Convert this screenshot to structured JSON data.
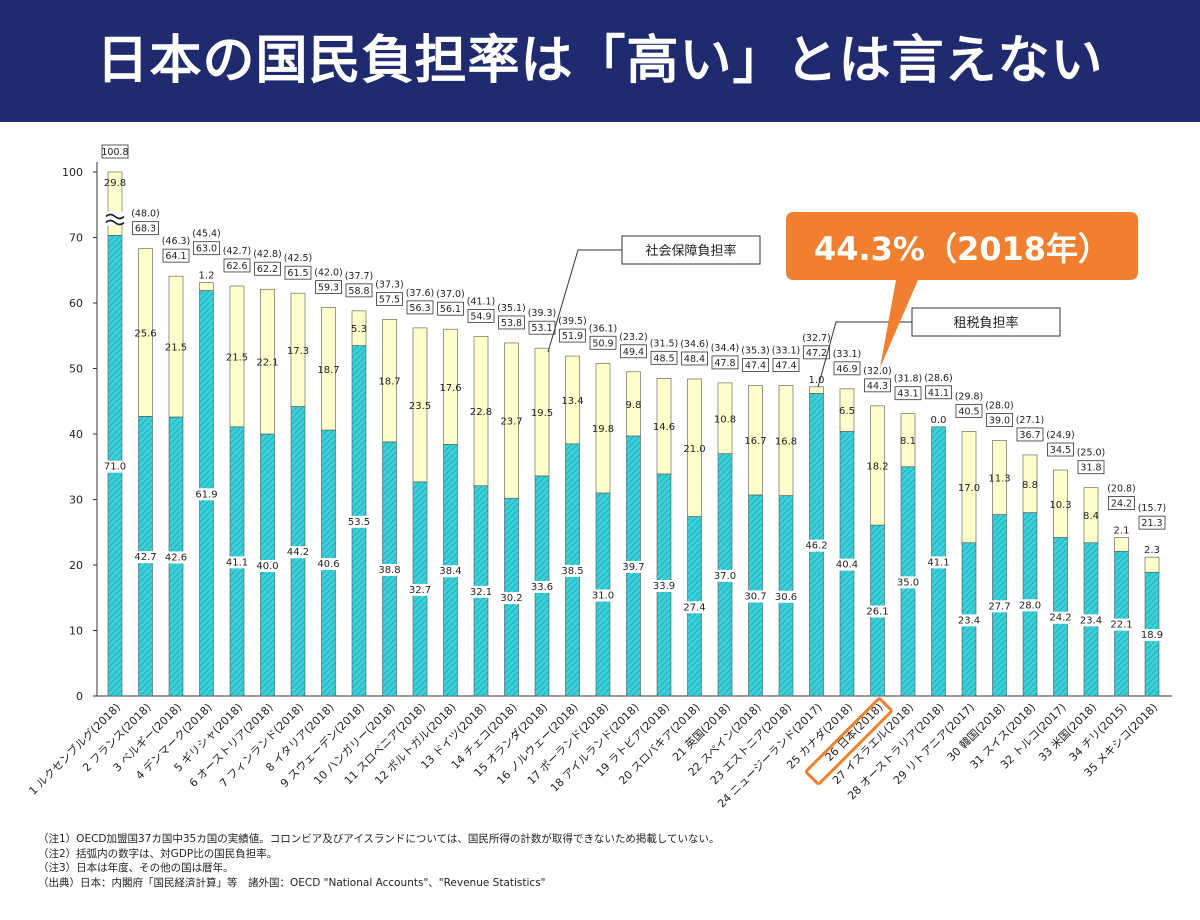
{
  "header": {
    "title": "日本の国民負担率は「高い」とは言えない"
  },
  "annotations": {
    "social_security_label": "社会保障負担率",
    "tax_label": "租税負担率",
    "callout": "44.3%（2018年）"
  },
  "notes": [
    "（注1）OECD加盟国37カ国中35カ国の実績値。コロンビア及びアイスランドについては、国民所得の計数が取得できないため掲載していない。",
    "（注2）括弧内の数字は、対GDP比の国民負担率。",
    "（注3）日本は年度、その他の国は暦年。",
    "（出典）日本：内閣府「国民経済計算」等　諸外国：OECD \"National Accounts\"、\"Revenue Statistics\""
  ],
  "colors": {
    "header_bg": "#202a6e",
    "tax": "#3dd0d8",
    "social_security": "#ffffcc",
    "callout": "#f08030",
    "japan_highlight": "#f08030"
  },
  "chart_data": {
    "type": "bar",
    "stacked": true,
    "ylim": [
      0,
      100
    ],
    "yticks": [
      0,
      10,
      20,
      30,
      40,
      50,
      60,
      70,
      100
    ],
    "axis_break": "between 70 and 100",
    "categories": [
      "1 ルクセンブルグ(2018)",
      "2 フランス(2018)",
      "3 ベルギー(2018)",
      "4 デンマーク(2018)",
      "5 ギリシャ(2018)",
      "6 オーストリア(2018)",
      "7 フィンランド(2018)",
      "8 イタリア(2018)",
      "9 スウェーデン(2018)",
      "10 ハンガリー(2018)",
      "11 スロベニア(2018)",
      "12 ポルトガル(2018)",
      "13 ドイツ(2018)",
      "14 チェコ(2018)",
      "15 オランダ(2018)",
      "16 ノルウェー(2018)",
      "17 ポーランド(2018)",
      "18 アイルランド(2018)",
      "19 ラトビア(2018)",
      "20 スロバキア(2018)",
      "21 英国(2018)",
      "22 スペイン(2018)",
      "23 エストニア(2018)",
      "24 ニュージーランド(2017)",
      "25 カナダ(2018)",
      "26 日本(2018)",
      "27 イスラエル(2018)",
      "28 オーストラリア(2018)",
      "29 リトアニア(2017)",
      "30 韓国(2018)",
      "31 スイス(2018)",
      "32 トルコ(2017)",
      "33 米国(2018)",
      "34 チリ(2015)",
      "35 メキシコ(2018)"
    ],
    "series": [
      {
        "name": "租税負担率",
        "values": [
          71.0,
          42.7,
          42.6,
          61.9,
          41.1,
          40.0,
          44.2,
          40.6,
          53.5,
          38.8,
          32.7,
          38.4,
          32.1,
          30.2,
          33.6,
          38.5,
          31.0,
          39.7,
          33.9,
          27.4,
          37.0,
          30.7,
          30.6,
          46.2,
          40.4,
          26.1,
          35.0,
          41.1,
          23.4,
          27.7,
          28.0,
          24.2,
          23.4,
          22.1,
          18.9
        ]
      },
      {
        "name": "社会保障負担率",
        "values": [
          29.8,
          25.6,
          21.5,
          1.2,
          21.5,
          22.1,
          17.3,
          18.7,
          5.3,
          18.7,
          23.5,
          17.6,
          22.8,
          23.7,
          19.5,
          13.4,
          19.8,
          9.8,
          14.6,
          21.0,
          10.8,
          16.7,
          16.8,
          1.0,
          6.5,
          18.2,
          8.1,
          0.0,
          17.0,
          11.3,
          8.8,
          10.3,
          8.4,
          2.1,
          2.3
        ]
      }
    ],
    "totals": [
      100.8,
      68.3,
      64.1,
      63.0,
      62.6,
      62.2,
      61.5,
      59.3,
      58.8,
      57.5,
      56.3,
      56.1,
      54.9,
      53.8,
      53.1,
      51.9,
      50.9,
      49.4,
      48.5,
      48.4,
      47.8,
      47.4,
      47.4,
      47.2,
      46.9,
      44.3,
      43.1,
      41.1,
      40.5,
      39.0,
      36.7,
      34.5,
      31.8,
      24.2,
      21.3
    ],
    "gdp_ratio": [
      null,
      "(48.0)",
      "(46.3)",
      "(45.4)",
      "(42.7)",
      "(42.8)",
      "(42.5)",
      "(42.0)",
      "(37.7)",
      "(37.3)",
      "(37.6)",
      "(37.0)",
      "(41.1)",
      "(35.1)",
      "(39.3)",
      "(39.5)",
      "(36.1)",
      "(23.2)",
      "(31.5)",
      "(34.6)",
      "(34.4)",
      "(35.3)",
      "(33.1)",
      "(32.7)",
      "(33.1)",
      "(32.0)",
      "(31.8)",
      "(28.6)",
      "(29.8)",
      "(28.0)",
      "(27.1)",
      "(24.9)",
      "(25.0)",
      "(20.8)",
      "(15.7)"
    ],
    "highlight_index": 25
  }
}
